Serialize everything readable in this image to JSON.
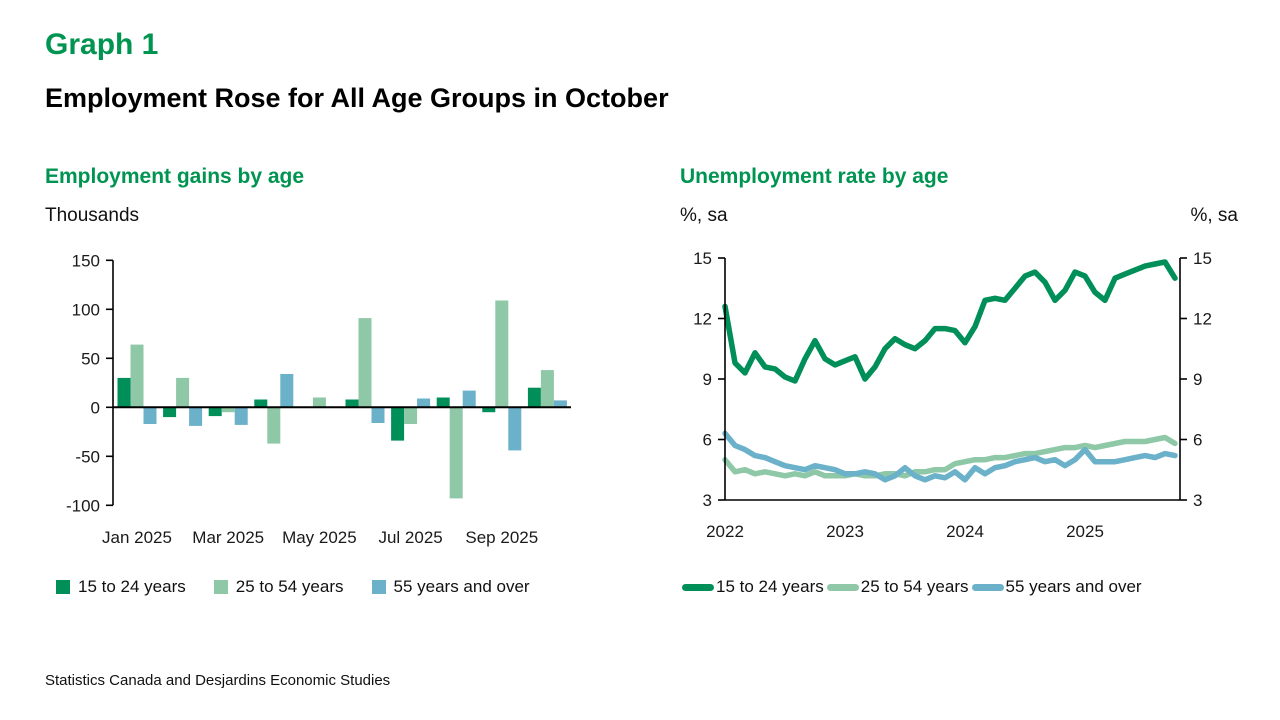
{
  "page": {
    "kicker": "Graph 1",
    "title": "Employment Rose for All Age Groups in October",
    "footer": "Statistics Canada and Desjardins Economic Studies"
  },
  "colors": {
    "title_green": "#009451",
    "axis_black": "#000000",
    "age_15_24": "#008F58",
    "age_25_54": "#8FC8A7",
    "age_55_plus": "#6AB1C9"
  },
  "chart_data": [
    {
      "type": "bar",
      "title": "Employment gains by age",
      "unit_label": "Thousands",
      "categories": [
        "Jan 2025",
        "Feb 2025",
        "Mar 2025",
        "Apr 2025",
        "May 2025",
        "Jun 2025",
        "Jul 2025",
        "Aug 2025",
        "Sep 2025",
        "Oct 2025"
      ],
      "x_tick_labels": [
        "Jan 2025",
        "Mar 2025",
        "May 2025",
        "Jul 2025",
        "Sep 2025"
      ],
      "ylim": [
        -100,
        150
      ],
      "yticks": [
        150,
        100,
        50,
        0,
        -50,
        -100
      ],
      "grid": false,
      "legend_position": "bottom",
      "series": [
        {
          "name": "15 to 24 years",
          "color": "#008F58",
          "values": [
            30,
            -10,
            -9,
            8,
            0,
            8,
            -34,
            10,
            -5,
            20
          ]
        },
        {
          "name": "25 to 54 years",
          "color": "#8FC8A7",
          "values": [
            64,
            30,
            -5,
            -37,
            10,
            91,
            -17,
            -93,
            109,
            38
          ]
        },
        {
          "name": "55 years and over",
          "color": "#6AB1C9",
          "values": [
            -17,
            -19,
            -18,
            34,
            0,
            -16,
            9,
            17,
            -44,
            7
          ]
        }
      ]
    },
    {
      "type": "line",
      "title": "Unemployment rate by age",
      "unit_label_left": "%, sa",
      "unit_label_right": "%, sa",
      "x_start": "2022-01",
      "x_end": "2025-10",
      "frequency": "monthly",
      "x_tick_labels": [
        "2022",
        "2023",
        "2024",
        "2025"
      ],
      "ylim": [
        3,
        15
      ],
      "yticks": [
        15,
        12,
        9,
        6,
        3
      ],
      "grid": false,
      "legend_position": "bottom",
      "series": [
        {
          "name": "15 to 24 years",
          "color": "#008F58",
          "values": [
            12.6,
            9.8,
            9.3,
            10.3,
            9.6,
            9.5,
            9.1,
            8.9,
            10.0,
            10.9,
            10.0,
            9.7,
            9.9,
            10.1,
            9.0,
            9.6,
            10.5,
            11.0,
            10.7,
            10.5,
            10.9,
            11.5,
            11.5,
            11.4,
            10.8,
            11.6,
            12.9,
            13.0,
            12.9,
            13.5,
            14.1,
            14.3,
            13.8,
            12.9,
            13.4,
            14.3,
            14.1,
            13.3,
            12.9,
            14.0,
            14.2,
            14.4,
            14.6,
            14.7,
            14.8,
            14.0
          ]
        },
        {
          "name": "25 to 54 years",
          "color": "#8FC8A7",
          "values": [
            5.0,
            4.4,
            4.5,
            4.3,
            4.4,
            4.3,
            4.2,
            4.3,
            4.2,
            4.4,
            4.2,
            4.2,
            4.2,
            4.3,
            4.2,
            4.2,
            4.3,
            4.3,
            4.2,
            4.4,
            4.4,
            4.5,
            4.5,
            4.8,
            4.9,
            5.0,
            5.0,
            5.1,
            5.1,
            5.2,
            5.3,
            5.3,
            5.4,
            5.5,
            5.6,
            5.6,
            5.7,
            5.6,
            5.7,
            5.8,
            5.9,
            5.9,
            5.9,
            6.0,
            6.1,
            5.8
          ]
        },
        {
          "name": "55 years and over",
          "color": "#6AB1C9",
          "values": [
            6.3,
            5.7,
            5.5,
            5.2,
            5.1,
            4.9,
            4.7,
            4.6,
            4.5,
            4.7,
            4.6,
            4.5,
            4.3,
            4.3,
            4.4,
            4.3,
            4.0,
            4.2,
            4.6,
            4.2,
            4.0,
            4.2,
            4.1,
            4.4,
            4.0,
            4.6,
            4.3,
            4.6,
            4.7,
            4.9,
            5.0,
            5.1,
            4.9,
            5.0,
            4.7,
            5.0,
            5.5,
            4.9,
            4.9,
            4.9,
            5.0,
            5.1,
            5.2,
            5.1,
            5.3,
            5.2
          ]
        }
      ]
    }
  ]
}
